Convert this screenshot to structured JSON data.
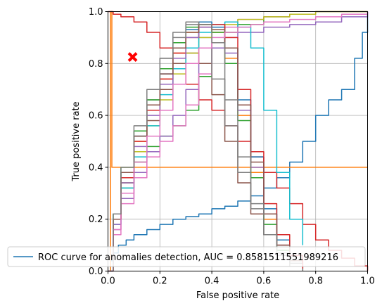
{
  "chart_data": {
    "type": "line",
    "title": "",
    "xlabel": "False positive rate",
    "ylabel": "True positive rate",
    "xlim": [
      0,
      1
    ],
    "ylim": [
      0,
      1
    ],
    "xticks": [
      "0.0",
      "0.2",
      "0.4",
      "0.6",
      "0.8",
      "1.0"
    ],
    "yticks": [
      "0.0",
      "0.2",
      "0.4",
      "0.6",
      "0.8",
      "1.0"
    ],
    "grid": true,
    "legend": {
      "placement": "lower-left",
      "entries": [
        "ROC curve for anomalies detection, AUC = 0.8581511551989216"
      ]
    },
    "marker": {
      "shape": "x",
      "color": "#ff0000",
      "x": 0.095,
      "y": 0.825
    },
    "series": [
      {
        "color": "#1f77b4",
        "x": [
          0,
          0.01,
          0.02,
          0.04,
          0.07,
          0.1,
          0.15,
          0.2,
          0.25,
          0.3,
          0.35,
          0.4,
          0.45,
          0.5,
          0.55,
          0.6,
          0.65,
          0.7,
          0.75,
          0.8,
          0.85,
          0.9,
          0.95,
          0.98,
          1.0
        ],
        "y": [
          0,
          0.04,
          0.07,
          0.1,
          0.12,
          0.14,
          0.16,
          0.18,
          0.2,
          0.21,
          0.22,
          0.24,
          0.25,
          0.27,
          0.29,
          0.32,
          0.36,
          0.42,
          0.5,
          0.6,
          0.66,
          0.7,
          0.82,
          0.92,
          1.0
        ]
      },
      {
        "color": "#ff7f0e",
        "x": [
          0,
          0.01,
          0.01,
          0.015,
          0.015,
          1.0
        ],
        "y": [
          0,
          0,
          1.0,
          1.0,
          0.4,
          0.4
        ]
      },
      {
        "color": "#2ca02c",
        "x": [
          0,
          0.02,
          0.05,
          0.1,
          0.15,
          0.2,
          0.25,
          0.3,
          0.35,
          0.4,
          0.45,
          0.5,
          0.6,
          0.7,
          0.8,
          0.9,
          1.0
        ],
        "y": [
          0,
          0.2,
          0.32,
          0.42,
          0.48,
          0.52,
          0.56,
          0.62,
          0.75,
          0.86,
          0.92,
          0.95,
          0.98,
          0.99,
          1.0,
          1.0,
          1.0
        ]
      },
      {
        "color": "#d62728",
        "x": [
          0,
          0.02,
          0.05,
          0.1,
          0.15,
          0.2,
          0.25,
          0.3,
          0.35,
          0.4,
          0.45,
          0.5,
          0.55,
          0.6,
          0.65,
          0.7,
          0.75,
          0.8,
          0.85,
          0.9,
          0.95,
          1.0
        ],
        "y": [
          1.0,
          0.99,
          0.98,
          0.96,
          0.92,
          0.86,
          0.78,
          0.72,
          0.66,
          0.62,
          0.56,
          0.5,
          0.44,
          0.38,
          0.32,
          0.26,
          0.18,
          0.12,
          0.08,
          0.05,
          0.02,
          0.0
        ]
      },
      {
        "color": "#9467bd",
        "x": [
          0,
          0.02,
          0.05,
          0.1,
          0.15,
          0.2,
          0.25,
          0.3,
          0.35,
          0.4,
          0.45,
          0.5,
          0.6,
          0.7,
          0.8,
          0.9,
          1.0
        ],
        "y": [
          0,
          0.16,
          0.28,
          0.38,
          0.46,
          0.52,
          0.6,
          0.7,
          0.8,
          0.86,
          0.9,
          0.92,
          0.94,
          0.95,
          0.96,
          0.98,
          1.0
        ]
      },
      {
        "color": "#8c564b",
        "x": [
          0,
          0.02,
          0.05,
          0.1,
          0.15,
          0.2,
          0.25,
          0.3,
          0.35,
          0.4,
          0.45,
          0.5,
          0.55,
          0.6,
          0.65,
          0.7,
          0.75
        ],
        "y": [
          0,
          0.2,
          0.34,
          0.46,
          0.58,
          0.7,
          0.8,
          0.84,
          0.8,
          0.68,
          0.5,
          0.34,
          0.22,
          0.14,
          0.08,
          0.04,
          0.0
        ]
      },
      {
        "color": "#e377c2",
        "x": [
          0,
          0.02,
          0.05,
          0.1,
          0.15,
          0.2,
          0.25,
          0.3,
          0.35,
          0.4,
          0.45,
          0.5,
          0.6,
          0.7,
          0.8,
          0.9,
          1.0
        ],
        "y": [
          0,
          0.14,
          0.26,
          0.36,
          0.44,
          0.5,
          0.56,
          0.64,
          0.76,
          0.88,
          0.94,
          0.97,
          0.98,
          0.99,
          1.0,
          1.0,
          1.0
        ]
      },
      {
        "color": "#7f7f7f",
        "x": [
          0,
          0.02,
          0.05,
          0.1,
          0.15,
          0.2,
          0.25,
          0.3,
          0.35,
          0.4,
          0.45,
          0.5,
          0.55,
          0.6,
          0.65,
          0.7,
          0.75
        ],
        "y": [
          0,
          0.2,
          0.36,
          0.52,
          0.66,
          0.82,
          0.92,
          0.95,
          0.9,
          0.74,
          0.56,
          0.38,
          0.24,
          0.14,
          0.07,
          0.03,
          0.0
        ]
      },
      {
        "color": "#bcbd22",
        "x": [
          0,
          0.02,
          0.05,
          0.1,
          0.15,
          0.2,
          0.25,
          0.3,
          0.35,
          0.4,
          0.45,
          0.5,
          0.6,
          0.7,
          0.8,
          0.9,
          1.0
        ],
        "y": [
          0,
          0.2,
          0.34,
          0.46,
          0.56,
          0.66,
          0.76,
          0.84,
          0.9,
          0.93,
          0.95,
          0.97,
          0.98,
          0.99,
          1.0,
          1.0,
          1.0
        ]
      },
      {
        "color": "#17becf",
        "x": [
          0,
          0.02,
          0.05,
          0.1,
          0.15,
          0.2,
          0.25,
          0.3,
          0.35,
          0.4,
          0.45,
          0.5,
          0.55,
          0.6,
          0.65,
          0.7,
          0.75
        ],
        "y": [
          0,
          0.18,
          0.32,
          0.44,
          0.56,
          0.68,
          0.78,
          0.86,
          0.92,
          0.95,
          0.96,
          0.94,
          0.86,
          0.62,
          0.38,
          0.2,
          0.1
        ]
      },
      {
        "color": "#1f77b4",
        "x": [
          0,
          0.02,
          0.05,
          0.1,
          0.15,
          0.2,
          0.25,
          0.3,
          0.35,
          0.4,
          0.45,
          0.5,
          0.55,
          0.6,
          0.65,
          0.7
        ],
        "y": [
          0,
          0.22,
          0.38,
          0.52,
          0.64,
          0.76,
          0.86,
          0.93,
          0.96,
          0.94,
          0.86,
          0.66,
          0.44,
          0.24,
          0.12,
          0.04
        ]
      },
      {
        "color": "#ff7f0e",
        "x": [
          0,
          0.02,
          0.05,
          0.1,
          0.15,
          0.2,
          0.25,
          0.3,
          0.35,
          0.4,
          0.45,
          0.5,
          0.55,
          0.6,
          0.65,
          0.7
        ],
        "y": [
          0,
          0.2,
          0.36,
          0.5,
          0.62,
          0.74,
          0.84,
          0.92,
          0.95,
          0.92,
          0.82,
          0.6,
          0.38,
          0.2,
          0.1,
          0.03
        ]
      },
      {
        "color": "#2ca02c",
        "x": [
          0,
          0.02,
          0.05,
          0.1,
          0.15,
          0.2,
          0.25,
          0.3,
          0.35,
          0.4,
          0.45,
          0.5,
          0.55,
          0.6,
          0.65,
          0.7
        ],
        "y": [
          0,
          0.22,
          0.4,
          0.54,
          0.66,
          0.78,
          0.88,
          0.94,
          0.95,
          0.92,
          0.8,
          0.58,
          0.36,
          0.18,
          0.08,
          0.02
        ]
      },
      {
        "color": "#d62728",
        "x": [
          0,
          0.02,
          0.05,
          0.1,
          0.15,
          0.2,
          0.25,
          0.3,
          0.35,
          0.4,
          0.45,
          0.5,
          0.55,
          0.6,
          0.65,
          0.7,
          0.75
        ],
        "y": [
          0,
          0.2,
          0.36,
          0.5,
          0.62,
          0.74,
          0.84,
          0.9,
          0.94,
          0.95,
          0.9,
          0.7,
          0.46,
          0.26,
          0.14,
          0.06,
          0.01
        ]
      },
      {
        "color": "#9467bd",
        "x": [
          0,
          0.02,
          0.05,
          0.1,
          0.15,
          0.2,
          0.25,
          0.3,
          0.35,
          0.4,
          0.45,
          0.5,
          0.55,
          0.6,
          0.65,
          0.7
        ],
        "y": [
          0,
          0.18,
          0.34,
          0.48,
          0.6,
          0.72,
          0.82,
          0.9,
          0.94,
          0.93,
          0.84,
          0.62,
          0.4,
          0.22,
          0.1,
          0.03
        ]
      },
      {
        "color": "#8c564b",
        "x": [
          0,
          0.02,
          0.05,
          0.1,
          0.15,
          0.2,
          0.25,
          0.3,
          0.35,
          0.4,
          0.45,
          0.5,
          0.55,
          0.6,
          0.65,
          0.7
        ],
        "y": [
          0,
          0.2,
          0.38,
          0.52,
          0.64,
          0.76,
          0.86,
          0.92,
          0.95,
          0.93,
          0.86,
          0.64,
          0.42,
          0.22,
          0.1,
          0.02
        ]
      },
      {
        "color": "#e377c2",
        "x": [
          0,
          0.02,
          0.05,
          0.1,
          0.15,
          0.2,
          0.25,
          0.3,
          0.35,
          0.4,
          0.45,
          0.5,
          0.55,
          0.6,
          0.7,
          0.8,
          0.9,
          1.0
        ],
        "y": [
          0,
          0.16,
          0.3,
          0.42,
          0.52,
          0.62,
          0.72,
          0.8,
          0.86,
          0.9,
          0.92,
          0.94,
          0.95,
          0.96,
          0.97,
          0.98,
          0.99,
          1.0
        ]
      },
      {
        "color": "#7f7f7f",
        "x": [
          0,
          0.02,
          0.05,
          0.1,
          0.15,
          0.2,
          0.25,
          0.3,
          0.35,
          0.4,
          0.45,
          0.5,
          0.55,
          0.6,
          0.65,
          0.7
        ],
        "y": [
          0,
          0.22,
          0.4,
          0.56,
          0.7,
          0.82,
          0.9,
          0.96,
          0.95,
          0.88,
          0.66,
          0.44,
          0.26,
          0.14,
          0.06,
          0.02
        ]
      }
    ]
  }
}
